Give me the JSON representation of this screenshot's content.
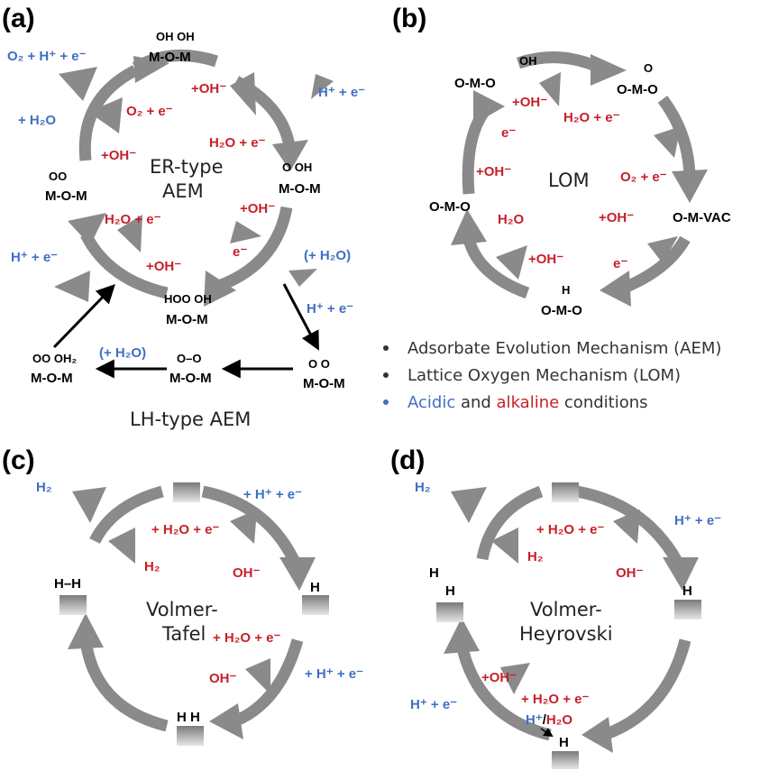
{
  "colors": {
    "acidic": "#3f6fc4",
    "alkaline": "#c8202a",
    "arrow": "#8a8a8a",
    "text": "#000000"
  },
  "panels": {
    "a": {
      "label": "(a)",
      "center_line1": "ER-type",
      "center_line2": "AEM",
      "lh_label": "LH-type AEM",
      "species": {
        "top": {
          "oh": "OH  OH",
          "main": "M-O-M"
        },
        "right": {
          "top": "O   OH",
          "main": "M-O-M"
        },
        "left": {
          "top": "OO",
          "main": "M-O-M"
        },
        "bottom": {
          "top": "HOO  OH",
          "main": "M-O-M"
        },
        "lh_left": {
          "top": "OO  OH₂",
          "main": "M-O-M"
        },
        "lh_mid": {
          "top": "O–O",
          "main": "M-O-M"
        },
        "lh_right": {
          "top": "O      O",
          "main": "M-O-M"
        }
      },
      "labels": {
        "o2_h_e": "O₂ + H⁺ + e⁻",
        "plus_h2o": "+ H₂O",
        "o2_e": "O₂ + e⁻",
        "oh_1": "+OH⁻",
        "oh_top": "+OH⁻",
        "h_e_top": "H⁺ + e⁻",
        "h2o_e_1": "H₂O + e⁻",
        "oh_right": "+OH⁻",
        "e_right": "e⁻",
        "plus_h2o_paren_right": "(+ H₂O)",
        "h_e_right": "H⁺ + e⁻",
        "h2o_e_left": "H₂O + e⁻",
        "h_e_left": "H⁺ + e⁻",
        "oh_left": "+OH⁻",
        "plus_h2o_paren_lh": "(+ H₂O)"
      }
    },
    "b": {
      "label": "(b)",
      "center": "LOM",
      "species": {
        "top": {
          "oh": "OH",
          "main": "O-M-O"
        },
        "right_top": {
          "o": "O",
          "main": "O-M-O"
        },
        "right": "O-M-VAC",
        "bottom": {
          "h": "H",
          "main": "O-M-O"
        },
        "left": "O-M-O"
      },
      "labels": {
        "oh_1": "+OH⁻",
        "h2o_e": "H₂O + e⁻",
        "e_1": "e⁻",
        "oh_2": "+OH⁻",
        "o2_e": "O₂ + e⁻",
        "h2o": "H₂O",
        "oh_3": "+OH⁻",
        "oh_4": "+OH⁻",
        "e_2": "e⁻"
      }
    },
    "c": {
      "label": "(c)",
      "center_line1": "Volmer-",
      "center_line2": "Tafel",
      "labels": {
        "h2_out": "H₂",
        "h_e_top": "+ H⁺ + e⁻",
        "h2o_e_1": "+ H₂O + e⁻",
        "h2": "H₂",
        "oh_1": "OH⁻",
        "h2o_e_2": "+ H₂O + e⁻",
        "oh_2": "OH⁻",
        "h_e_right": "+ H⁺ + e⁻"
      },
      "site_labels": {
        "hh": "H–H",
        "h_single": "H",
        "h_pair": "H   H"
      }
    },
    "d": {
      "label": "(d)",
      "center_line1": "Volmer-",
      "center_line2": "Heyrovski",
      "labels": {
        "h2_out": "H₂",
        "h_e_top": "H⁺ + e⁻",
        "h2o_e_1": "+ H₂O + e⁻",
        "h2": "H₂",
        "oh_1": "OH⁻",
        "oh_2": "+OH⁻",
        "h2o_e_2": "+ H₂O + e⁻",
        "h_e_left": "H⁺ + e⁻",
        "h_plus": "H⁺",
        "slash": "/",
        "h2o": "H₂O"
      },
      "site_labels": {
        "h_tilt1": "H",
        "h_tilt2": "H",
        "h_single": "H",
        "h_bottom": "H"
      }
    }
  },
  "legend": {
    "item1": "Adsorbate Evolution Mechanism (AEM)",
    "item2": "Lattice Oxygen Mechanism (LOM)",
    "item3_acidic": "Acidic",
    "item3_and": " and ",
    "item3_alkaline": "alkaline",
    "item3_rest": " conditions"
  }
}
